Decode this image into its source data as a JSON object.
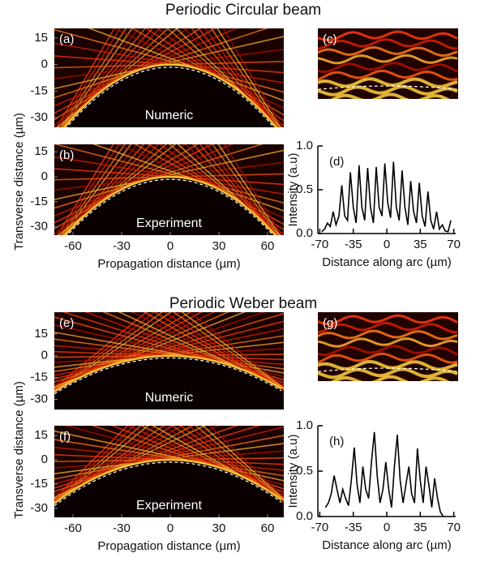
{
  "sections": [
    {
      "title": "Periodic Circular beam",
      "y_label": "Transverse distance (µm)"
    },
    {
      "title": "Periodic Weber beam",
      "y_label": "Transverse distance (µm)"
    }
  ],
  "chart_data": [
    {
      "type": "heatmap",
      "label": "(a)",
      "annotation": "Numeric",
      "xlim": [
        -71.5,
        70
      ],
      "ylim": [
        -35.5,
        20.5
      ],
      "yticks": [
        15,
        0,
        -15,
        -30
      ]
    },
    {
      "type": "heatmap",
      "label": "(b)",
      "annotation": "Experiment",
      "xlim": [
        -71.5,
        70
      ],
      "ylim": [
        -35,
        19.5
      ],
      "yticks": [
        15,
        0,
        -15,
        -30
      ],
      "xticks": [
        -60,
        -30,
        0,
        30,
        60
      ],
      "x_label": "Propagation distance (µm)"
    },
    {
      "type": "image",
      "label": "(c)"
    },
    {
      "type": "line",
      "label": "(d)",
      "color": "#000000",
      "xlim": [
        -72,
        72
      ],
      "ylim": [
        0,
        1
      ],
      "xticks": [
        -70,
        -35,
        0,
        35,
        70
      ],
      "yticks": [
        {
          "value": 1,
          "label": "1.0"
        },
        0.5,
        {
          "value": 0,
          "label": "0.0"
        }
      ],
      "x_label": "Distance along arc (µm)",
      "y_label": "Intensity (a.u)",
      "x": [
        -68,
        -65,
        -62,
        -59,
        -56,
        -53,
        -50,
        -47,
        -44,
        -41,
        -38,
        -35,
        -32,
        -29,
        -26,
        -23,
        -20,
        -17,
        -14,
        -11,
        -8,
        -5,
        -2,
        1,
        4,
        7,
        10,
        13,
        16,
        19,
        22,
        25,
        28,
        31,
        34,
        37,
        40,
        43,
        46,
        49,
        52,
        55,
        58,
        61,
        64,
        67
      ],
      "values": [
        0.02,
        0.05,
        0.12,
        0.08,
        0.25,
        0.1,
        0.2,
        0.55,
        0.2,
        0.15,
        0.7,
        0.3,
        0.12,
        0.78,
        0.3,
        0.15,
        0.75,
        0.3,
        0.12,
        0.76,
        0.3,
        0.2,
        0.8,
        0.35,
        0.18,
        0.82,
        0.3,
        0.15,
        0.72,
        0.3,
        0.1,
        0.6,
        0.25,
        0.12,
        0.58,
        0.2,
        0.08,
        0.48,
        0.15,
        0.05,
        0.25,
        0.05,
        0.1,
        0.03,
        0.02,
        0.15
      ]
    },
    {
      "type": "heatmap",
      "label": "(e)",
      "annotation": "Numeric",
      "xlim": [
        -71.5,
        70
      ],
      "ylim": [
        -37,
        30
      ],
      "yticks": [
        15,
        0,
        -15,
        -30
      ]
    },
    {
      "type": "heatmap",
      "label": "(f)",
      "annotation": "Experiment",
      "xlim": [
        -71.5,
        70
      ],
      "ylim": [
        -35.5,
        21
      ],
      "yticks": [
        15,
        0,
        -15,
        -30
      ],
      "xticks": [
        -60,
        -30,
        0,
        30,
        60
      ],
      "x_label": "Propagation distance (µm)"
    },
    {
      "type": "image",
      "label": "(g)"
    },
    {
      "type": "line",
      "label": "(h)",
      "color": "#000000",
      "xlim": [
        -72,
        72
      ],
      "ylim": [
        0,
        1
      ],
      "xticks": [
        -70,
        -35,
        0,
        35,
        70
      ],
      "yticks": [
        {
          "value": 1,
          "label": "1.0"
        },
        0.5,
        {
          "value": 0,
          "label": "0.0"
        }
      ],
      "x_label": "Distance along arc (µm)",
      "y_label": "Intensity (a.u)",
      "x": [
        -64,
        -61,
        -58,
        -55,
        -52,
        -49,
        -46,
        -43,
        -40,
        -37,
        -34,
        -31,
        -28,
        -25,
        -22,
        -19,
        -16,
        -13,
        -10,
        -7,
        -4,
        -1,
        2,
        5,
        8,
        11,
        14,
        17,
        20,
        23,
        26,
        29,
        32,
        35,
        38,
        41,
        44,
        47,
        50,
        53,
        56,
        59
      ],
      "values": [
        0.1,
        0.15,
        0.25,
        0.45,
        0.3,
        0.15,
        0.3,
        0.2,
        0.12,
        0.4,
        0.76,
        0.35,
        0.15,
        0.55,
        0.3,
        0.2,
        0.6,
        0.93,
        0.45,
        0.15,
        0.3,
        0.6,
        0.3,
        0.1,
        0.55,
        0.9,
        0.4,
        0.15,
        0.35,
        0.55,
        0.25,
        0.15,
        0.75,
        0.4,
        0.15,
        0.55,
        0.35,
        0.1,
        0.42,
        0.2,
        0.05,
        0.0
      ]
    }
  ]
}
